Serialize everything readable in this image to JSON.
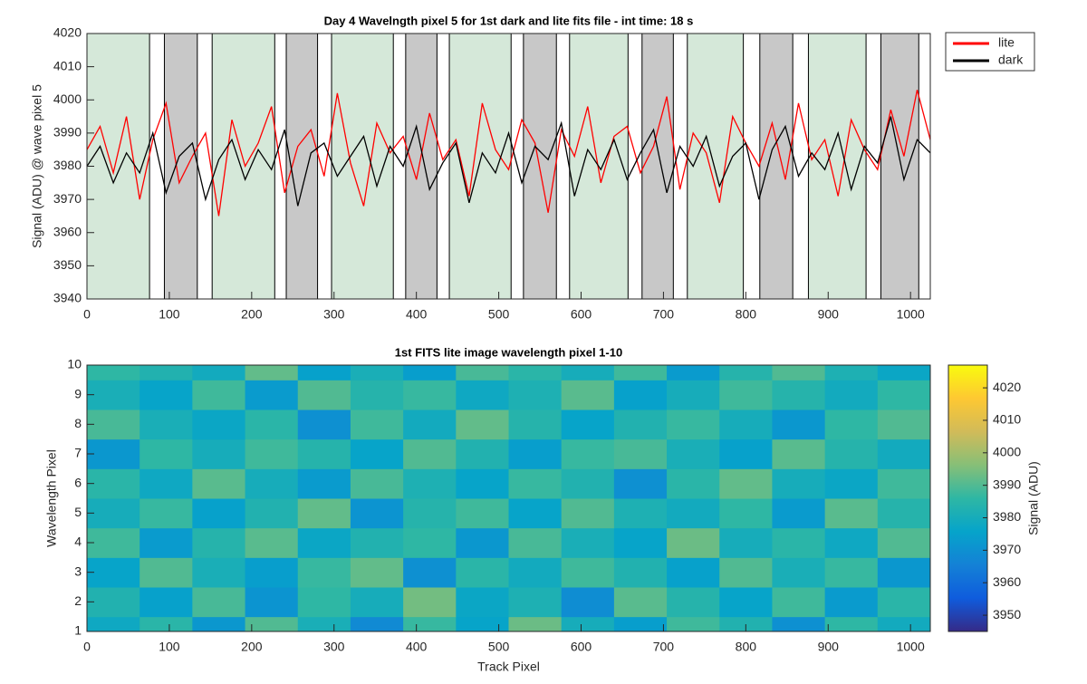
{
  "chart_data": [
    {
      "type": "line",
      "title": "Day 4 Wavelngth pixel 5 for 1st dark and lite fits file - int time: 18 s",
      "y_label": "Signal (ADU) @ wave pixel 5",
      "xlim": [
        0,
        1024
      ],
      "xticks": [
        0,
        100,
        200,
        300,
        400,
        500,
        600,
        700,
        800,
        900,
        1000
      ],
      "ylim": [
        3940,
        4020
      ],
      "yticks": [
        3940,
        3950,
        3960,
        3970,
        3980,
        3990,
        4000,
        4010,
        4020
      ],
      "regions": [
        {
          "start": 0,
          "end": 76,
          "color": "#d5e8d9"
        },
        {
          "start": 94,
          "end": 134,
          "color": "#c8c8c8"
        },
        {
          "start": 152,
          "end": 228,
          "color": "#d5e8d9"
        },
        {
          "start": 242,
          "end": 280,
          "color": "#c8c8c8"
        },
        {
          "start": 297,
          "end": 372,
          "color": "#d5e8d9"
        },
        {
          "start": 387,
          "end": 425,
          "color": "#c8c8c8"
        },
        {
          "start": 440,
          "end": 515,
          "color": "#d5e8d9"
        },
        {
          "start": 530,
          "end": 570,
          "color": "#c8c8c8"
        },
        {
          "start": 586,
          "end": 657,
          "color": "#d5e8d9"
        },
        {
          "start": 674,
          "end": 712,
          "color": "#c8c8c8"
        },
        {
          "start": 729,
          "end": 797,
          "color": "#d5e8d9"
        },
        {
          "start": 817,
          "end": 857,
          "color": "#c8c8c8"
        },
        {
          "start": 876,
          "end": 946,
          "color": "#d5e8d9"
        },
        {
          "start": 964,
          "end": 1010,
          "color": "#c8c8c8"
        }
      ],
      "x": [
        0,
        16,
        32,
        48,
        64,
        80,
        96,
        112,
        128,
        144,
        160,
        176,
        192,
        208,
        224,
        240,
        256,
        272,
        288,
        304,
        320,
        336,
        352,
        368,
        384,
        400,
        416,
        432,
        448,
        464,
        480,
        496,
        512,
        528,
        544,
        560,
        576,
        592,
        608,
        624,
        640,
        656,
        672,
        688,
        704,
        720,
        736,
        752,
        768,
        784,
        800,
        816,
        832,
        848,
        864,
        880,
        896,
        912,
        928,
        944,
        960,
        976,
        992,
        1008,
        1024
      ],
      "series": [
        {
          "name": "lite",
          "color": "#ff0000",
          "values": [
            3985,
            3992,
            3978,
            3995,
            3970,
            3988,
            3999,
            3975,
            3983,
            3990,
            3965,
            3994,
            3980,
            3987,
            3998,
            3972,
            3986,
            3991,
            3977,
            4002,
            3981,
            3968,
            3993,
            3984,
            3989,
            3976,
            3996,
            3982,
            3988,
            3971,
            3999,
            3985,
            3979,
            3994,
            3987,
            3966,
            3991,
            3983,
            3998,
            3975,
            3989,
            3992,
            3978,
            3986,
            4001,
            3973,
            3990,
            3984,
            3969,
            3995,
            3987,
            3980,
            3993,
            3976,
            3999,
            3982,
            3988,
            3971,
            3994,
            3985,
            3979,
            3997,
            3983,
            4003,
            3988
          ]
        },
        {
          "name": "dark",
          "color": "#000000",
          "values": [
            3980,
            3986,
            3975,
            3984,
            3978,
            3990,
            3972,
            3983,
            3987,
            3970,
            3982,
            3988,
            3976,
            3985,
            3979,
            3991,
            3968,
            3984,
            3987,
            3977,
            3983,
            3989,
            3974,
            3986,
            3980,
            3992,
            3973,
            3981,
            3987,
            3969,
            3984,
            3978,
            3990,
            3975,
            3986,
            3982,
            3993,
            3971,
            3985,
            3979,
            3988,
            3976,
            3984,
            3991,
            3972,
            3986,
            3980,
            3989,
            3974,
            3983,
            3987,
            3970,
            3985,
            3992,
            3977,
            3984,
            3979,
            3990,
            3973,
            3986,
            3981,
            3995,
            3976,
            3988,
            3984
          ]
        }
      ]
    },
    {
      "type": "heatmap",
      "title": "1st FITS lite image wavelength pixel 1-10",
      "x_label": "Track Pixel",
      "y_label": "Wavelength Pixel",
      "colorbar_label": "Signal (ADU)",
      "xlim": [
        0,
        1024
      ],
      "xticks": [
        0,
        100,
        200,
        300,
        400,
        500,
        600,
        700,
        800,
        900,
        1000
      ],
      "ylim": [
        1,
        10
      ],
      "yticks": [
        1,
        2,
        3,
        4,
        5,
        6,
        7,
        8,
        9,
        10
      ],
      "clim": [
        3945,
        4027
      ],
      "cticks": [
        3950,
        3960,
        3970,
        3980,
        3990,
        4000,
        4010,
        4020
      ],
      "colormap": [
        "#352a87",
        "#0f5cdd",
        "#1481d6",
        "#06a4ca",
        "#2eb7a4",
        "#87bf77",
        "#d1bb59",
        "#fec832",
        "#f9fb0e"
      ],
      "x": [
        32,
        96,
        160,
        224,
        288,
        352,
        416,
        480,
        544,
        608,
        672,
        736,
        800,
        864,
        928,
        992
      ],
      "y": [
        1,
        2,
        3,
        4,
        5,
        6,
        7,
        8,
        9,
        10
      ],
      "z": [
        [
          3978,
          3985,
          3972,
          3990,
          3981,
          3968,
          3987,
          3976,
          3993,
          3980,
          3974,
          3988,
          3983,
          3970,
          3986,
          3979
        ],
        [
          3983,
          3975,
          3989,
          3971,
          3986,
          3980,
          3994,
          3977,
          3982,
          3969,
          3991,
          3984,
          3976,
          3988,
          3973,
          3985
        ],
        [
          3976,
          3990,
          3981,
          3974,
          3987,
          3992,
          3970,
          3985,
          3979,
          3988,
          3983,
          3975,
          3990,
          3981,
          3987,
          3972
        ],
        [
          3988,
          3973,
          3984,
          3991,
          3977,
          3983,
          3986,
          3972,
          3989,
          3981,
          3976,
          3993,
          3980,
          3985,
          3978,
          3990
        ],
        [
          3980,
          3987,
          3975,
          3983,
          3992,
          3971,
          3984,
          3988,
          3976,
          3990,
          3982,
          3979,
          3986,
          3973,
          3991,
          3984
        ],
        [
          3985,
          3978,
          3991,
          3980,
          3973,
          3989,
          3982,
          3976,
          3987,
          3983,
          3970,
          3985,
          3992,
          3980,
          3977,
          3988
        ],
        [
          3972,
          3986,
          3980,
          3988,
          3984,
          3976,
          3990,
          3983,
          3974,
          3987,
          3989,
          3981,
          3975,
          3991,
          3984,
          3979
        ],
        [
          3989,
          3981,
          3977,
          3985,
          3970,
          3988,
          3979,
          3992,
          3984,
          3976,
          3983,
          3987,
          3980,
          3972,
          3986,
          3990
        ],
        [
          3981,
          3976,
          3988,
          3973,
          3990,
          3984,
          3987,
          3978,
          3982,
          3991,
          3975,
          3980,
          3988,
          3984,
          3979,
          3986
        ],
        [
          3986,
          3983,
          3979,
          3992,
          3975,
          3981,
          3974,
          3989,
          3985,
          3980,
          3988,
          3973,
          3984,
          3990,
          3982,
          3977
        ]
      ]
    }
  ]
}
